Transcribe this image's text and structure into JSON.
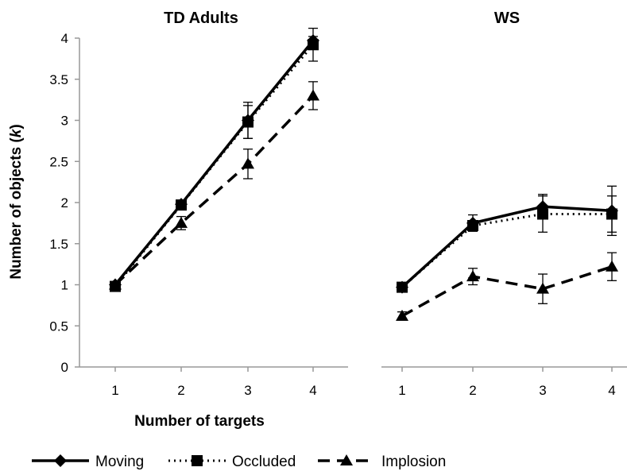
{
  "chart_data": [
    {
      "type": "line",
      "title": "TD Adults",
      "xlabel": "Number of targets",
      "ylabel": "Number of objects (k)",
      "ylabel_parts": [
        "Number of objects (",
        "k",
        ")"
      ],
      "x": [
        1,
        2,
        3,
        4
      ],
      "ylim": [
        0,
        4
      ],
      "yticks": [
        0,
        0.5,
        1,
        1.5,
        2,
        2.5,
        3,
        3.5,
        4
      ],
      "ytick_labels": [
        "0",
        "0.5",
        "1",
        "1.5",
        "2",
        "2.5",
        "3",
        "3.5",
        "4"
      ],
      "xtick_labels": [
        "1",
        "2",
        "3",
        "4"
      ],
      "grid": false,
      "series": [
        {
          "name": "Moving",
          "style": "solid",
          "marker": "diamond",
          "values": [
            1.0,
            1.98,
            3.0,
            3.97
          ],
          "errors": [
            0,
            0.05,
            0.22,
            0.05
          ]
        },
        {
          "name": "Occluded",
          "style": "dotted",
          "marker": "square",
          "values": [
            0.98,
            1.97,
            2.98,
            3.92
          ],
          "errors": [
            0,
            0.05,
            0.2,
            0.2
          ]
        },
        {
          "name": "Implosion",
          "style": "dashed",
          "marker": "triangle",
          "values": [
            1.0,
            1.75,
            2.47,
            3.3
          ],
          "errors": [
            0,
            0.08,
            0.18,
            0.17
          ]
        }
      ]
    },
    {
      "type": "line",
      "title": "WS",
      "x": [
        1,
        2,
        3,
        4
      ],
      "ylim": [
        0,
        4
      ],
      "xtick_labels": [
        "1",
        "2",
        "3",
        "4"
      ],
      "grid": false,
      "series": [
        {
          "name": "Moving",
          "style": "solid",
          "marker": "diamond",
          "values": [
            0.97,
            1.75,
            1.95,
            1.9
          ],
          "errors": [
            0.05,
            0.1,
            0.15,
            0.3
          ]
        },
        {
          "name": "Occluded",
          "style": "dotted",
          "marker": "square",
          "values": [
            0.97,
            1.72,
            1.86,
            1.86
          ],
          "errors": [
            0.05,
            0.05,
            0.22,
            0.22
          ]
        },
        {
          "name": "Implosion",
          "style": "dashed",
          "marker": "triangle",
          "values": [
            0.62,
            1.1,
            0.95,
            1.22
          ],
          "errors": [
            0.05,
            0.1,
            0.18,
            0.17
          ]
        }
      ]
    }
  ],
  "legend": {
    "placement": "bottom",
    "items": [
      {
        "label": "Moving",
        "style": "solid",
        "marker": "diamond"
      },
      {
        "label": "Occluded",
        "style": "dotted",
        "marker": "square"
      },
      {
        "label": "Implosion",
        "style": "dashed",
        "marker": "triangle"
      }
    ]
  }
}
